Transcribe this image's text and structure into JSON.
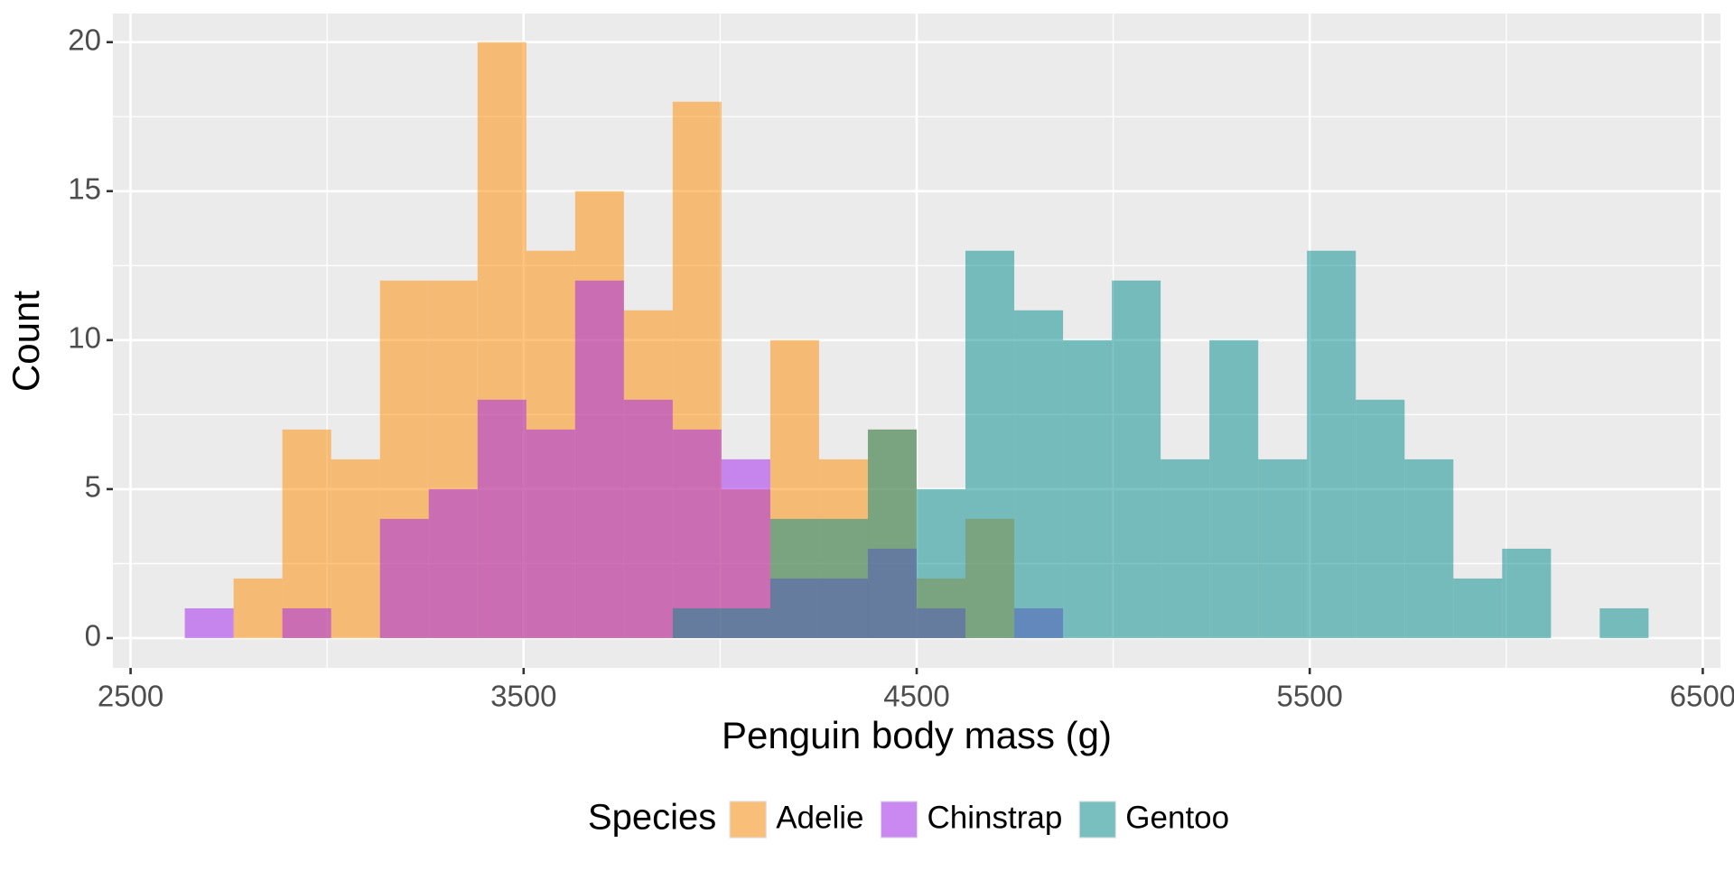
{
  "chart_data": {
    "type": "histogram",
    "x_label": "Penguin body mass (g)",
    "y_label": "Count",
    "legend_title": "Species",
    "legend_position": "bottom",
    "grid": true,
    "opacity": 0.5,
    "bins": [
      2637.9,
      2762.1,
      2886.2,
      3010.3,
      3134.5,
      3258.6,
      3382.8,
      3506.9,
      3631.0,
      3755.2,
      3879.3,
      4003.4,
      4127.6,
      4251.7,
      4375.9,
      4500.0,
      4624.1,
      4748.3,
      4872.4,
      4996.6,
      5120.7,
      5244.8,
      5369.0,
      5493.1,
      5617.2,
      5741.4,
      5865.5,
      5989.7,
      6113.8,
      6237.9,
      6362.1
    ],
    "series": [
      {
        "name": "Adelie",
        "color": "#FF8C00",
        "values": [
          0,
          2,
          7,
          6,
          12,
          12,
          20,
          13,
          15,
          11,
          18,
          5,
          10,
          6,
          7,
          2,
          4,
          0,
          0,
          0,
          0,
          0,
          0,
          0,
          0,
          0,
          0,
          0,
          0,
          0
        ]
      },
      {
        "name": "Chinstrap",
        "color": "#A020F0",
        "values": [
          1,
          0,
          1,
          0,
          4,
          5,
          8,
          7,
          12,
          8,
          7,
          6,
          2,
          2,
          3,
          1,
          0,
          1,
          0,
          0,
          0,
          0,
          0,
          0,
          0,
          0,
          0,
          0,
          0,
          0
        ]
      },
      {
        "name": "Gentoo",
        "color": "#008B8B",
        "values": [
          0,
          0,
          0,
          0,
          0,
          0,
          0,
          0,
          0,
          0,
          1,
          1,
          4,
          4,
          7,
          5,
          13,
          11,
          10,
          12,
          6,
          10,
          6,
          13,
          8,
          6,
          2,
          3,
          0,
          1
        ]
      }
    ],
    "xlim": [
      2455,
      6545
    ],
    "xticks": [
      2500,
      3500,
      4500,
      5500,
      6500
    ],
    "ylim": [
      -1,
      20.96
    ],
    "yticks": [
      0,
      5,
      10,
      15,
      20
    ]
  }
}
